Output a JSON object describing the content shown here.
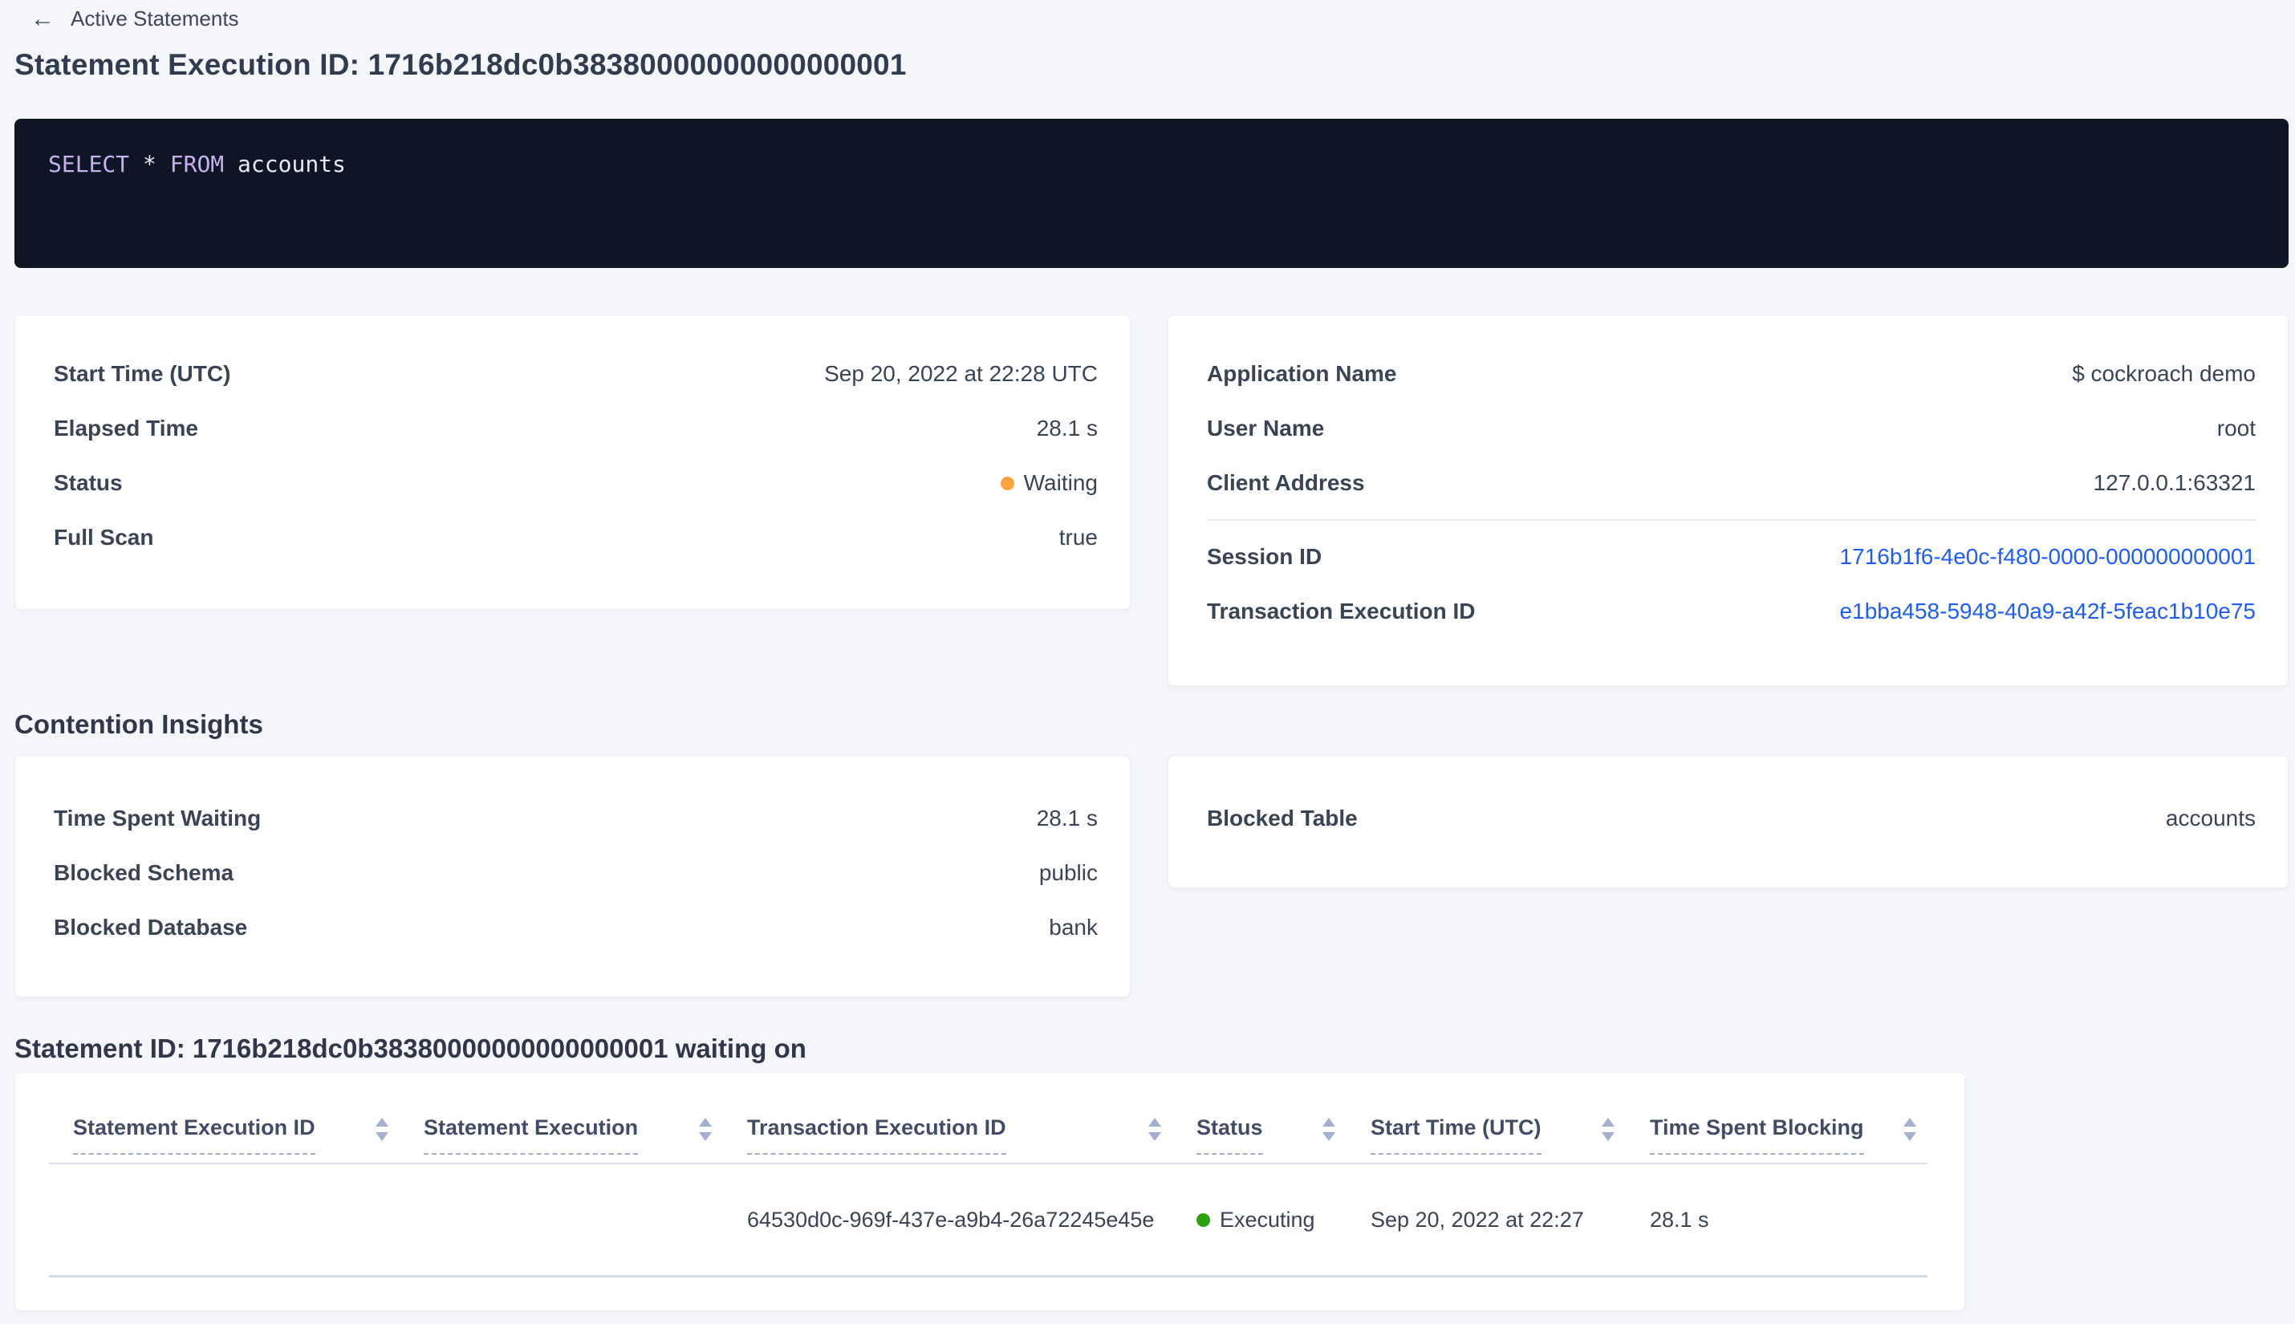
{
  "colors": {
    "accent_link": "#1d5cff",
    "status_waiting_dot": "#ffa43d",
    "status_executing_dot": "#2aa30f",
    "sql_keyword": "#c9b1f1",
    "sql_box_background": "#0e1626",
    "page_background": "#f4f6fa"
  },
  "header": {
    "back_label": "Active Statements",
    "back_icon": "←",
    "title": "Statement Execution ID: 1716b218dc0b38380000000000000001"
  },
  "sql": {
    "keyword_select": "SELECT",
    "star": " * ",
    "keyword_from": "FROM",
    "table_name": " accounts"
  },
  "overview": {
    "rows": [
      {
        "label": "Start Time (UTC)",
        "value": "Sep 20, 2022 at 22:28 UTC"
      },
      {
        "label": "Elapsed Time",
        "value": "28.1 s"
      },
      {
        "label": "Status",
        "value": "Waiting"
      },
      {
        "label": "Full Scan",
        "value": "true"
      }
    ]
  },
  "session": {
    "rows": [
      {
        "label": "Application Name",
        "value": "$ cockroach demo"
      },
      {
        "label": "User Name",
        "value": "root"
      },
      {
        "label": "Client Address",
        "value": "127.0.0.1:63321"
      },
      {
        "label": "Session ID",
        "value": "1716b1f6-4e0c-f480-0000-000000000001"
      },
      {
        "label": "Transaction Execution ID",
        "value": "e1bba458-5948-40a9-a42f-5feac1b10e75"
      }
    ]
  },
  "contention": {
    "heading": "Contention Insights",
    "left_rows": [
      {
        "label": "Time Spent Waiting",
        "value": "28.1 s"
      },
      {
        "label": "Blocked Schema",
        "value": "public"
      },
      {
        "label": "Blocked Database",
        "value": "bank"
      }
    ],
    "right_rows": [
      {
        "label": "Blocked Table",
        "value": "accounts"
      }
    ]
  },
  "waiting_on": {
    "heading": "Statement ID: 1716b218dc0b38380000000000000001 waiting on",
    "columns": [
      "Statement Execution ID",
      "Statement Execution",
      "Transaction Execution ID",
      "Status",
      "Start Time (UTC)",
      "Time Spent Blocking"
    ],
    "rows": [
      {
        "statement_execution_id": "",
        "statement_execution": "",
        "transaction_execution_id": "64530d0c-969f-437e-a9b4-26a72245e45e",
        "status": "Executing",
        "start_time": "Sep 20, 2022 at 22:27",
        "time_spent_blocking": "28.1 s"
      }
    ]
  }
}
